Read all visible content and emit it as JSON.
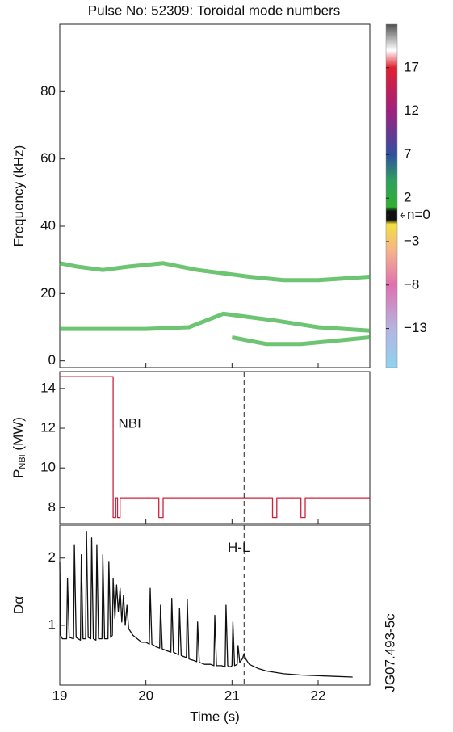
{
  "chart_data": [
    {
      "type": "spectrogram",
      "title": "Pulse No: 52309:   Toroidal mode numbers",
      "y_label": "Frequency (kHz)",
      "xlim": [
        19,
        22.6
      ],
      "xticks": [
        19,
        20,
        21,
        22
      ],
      "ylim": [
        -2,
        100
      ],
      "yticks": [
        0,
        20,
        40,
        60,
        80
      ],
      "series": [
        {
          "color": "#3cb043",
          "x": [
            19.0,
            19.2,
            19.5,
            19.8,
            20.2,
            20.6,
            20.9,
            21.2,
            21.6,
            22.0,
            22.6
          ],
          "values": [
            29,
            28,
            27,
            28,
            29,
            27,
            26,
            25,
            24,
            24,
            25
          ]
        },
        {
          "color": "#3cb043",
          "x": [
            19.0,
            19.5,
            20.0,
            20.5,
            20.7,
            20.9,
            21.2,
            21.5,
            22.0,
            22.6
          ],
          "values": [
            9.5,
            9.5,
            9.5,
            10,
            12,
            14,
            13,
            12,
            10,
            9
          ]
        },
        {
          "color": "#3cb043",
          "x": [
            21.0,
            21.4,
            21.8,
            22.2,
            22.6
          ],
          "values": [
            7,
            5,
            5,
            6,
            7
          ]
        }
      ],
      "colorbar": {
        "lim": [
          -17.5,
          22
        ],
        "ticks": [
          17,
          12,
          7,
          2,
          {
            "value": 0,
            "label": "n=0"
          },
          {
            "value": -3,
            "label": "−3"
          },
          {
            "value": -8,
            "label": "−8"
          },
          {
            "value": -13,
            "label": "−13"
          }
        ],
        "colorscale": [
          [
            -17.5,
            "#8fd3f0"
          ],
          [
            -13,
            "#b4b4e0"
          ],
          [
            -8,
            "#e070b0"
          ],
          [
            -4,
            "#f6b48a"
          ],
          [
            -1,
            "#f2e040"
          ],
          [
            -0.5,
            "#101010"
          ],
          [
            0.5,
            "#101010"
          ],
          [
            1,
            "#30b030"
          ],
          [
            4,
            "#2fa060"
          ],
          [
            7,
            "#3050a0"
          ],
          [
            12,
            "#a02080"
          ],
          [
            17,
            "#e02030"
          ],
          [
            19,
            "#ffffff"
          ],
          [
            22,
            "#505050"
          ]
        ]
      }
    },
    {
      "type": "line",
      "y_label": {
        "main": "P",
        "sub": "NBI",
        "unit": " (MW)"
      },
      "annotations": [
        {
          "text": "NBI",
          "x": 19.68,
          "y": 12.2
        }
      ],
      "vline": 21.14,
      "xlim": [
        19,
        22.6
      ],
      "xticks": [
        19,
        20,
        21,
        22
      ],
      "ylim": [
        7.2,
        14.85
      ],
      "yticks": [
        8,
        10,
        12,
        14
      ],
      "series": [
        {
          "color": "#d0203a",
          "x": [
            19,
            19.62,
            19.62,
            19.65,
            19.65,
            19.67,
            19.67,
            19.7,
            19.7,
            20.15,
            20.15,
            20.2,
            20.2,
            21.47,
            21.47,
            21.52,
            21.52,
            21.8,
            21.8,
            21.85,
            21.85,
            22.6
          ],
          "values": [
            14.6,
            14.6,
            7.5,
            7.5,
            8.5,
            8.5,
            7.5,
            7.5,
            8.5,
            8.5,
            7.5,
            7.5,
            8.5,
            8.5,
            7.5,
            7.5,
            8.5,
            8.5,
            7.5,
            7.5,
            8.5,
            8.5
          ]
        }
      ]
    },
    {
      "type": "line",
      "y_label": "Dα",
      "x_label": "Time (s)",
      "annotations": [
        {
          "text": "H-L",
          "x": 20.95,
          "y": 2.15
        }
      ],
      "figure_id": "JG07.493-5c",
      "vline": 21.14,
      "xlim": [
        19,
        22.6
      ],
      "xticks": [
        19,
        20,
        21,
        22
      ],
      "ylim": [
        0.11,
        2.49
      ],
      "yticks": [
        1,
        2
      ],
      "series": [
        {
          "color": "#111111",
          "x": [
            19.0,
            19.01,
            19.03,
            19.08,
            19.09,
            19.11,
            19.16,
            19.17,
            19.19,
            19.24,
            19.25,
            19.27,
            19.3,
            19.31,
            19.33,
            19.36,
            19.37,
            19.39,
            19.42,
            19.43,
            19.45,
            19.49,
            19.5,
            19.52,
            19.56,
            19.57,
            19.59,
            19.61,
            19.62,
            19.64,
            19.66,
            19.68,
            19.7,
            19.72,
            19.74,
            19.76,
            19.78,
            19.8,
            19.85,
            19.9,
            19.95,
            20.0,
            20.04,
            20.05,
            20.07,
            20.12,
            20.16,
            20.17,
            20.19,
            20.25,
            20.29,
            20.3,
            20.32,
            20.38,
            20.39,
            20.41,
            20.47,
            20.48,
            20.5,
            20.55,
            20.59,
            20.6,
            20.62,
            20.68,
            20.75,
            20.79,
            20.8,
            20.82,
            20.88,
            20.92,
            20.93,
            20.95,
            20.98,
            21.0,
            21.01,
            21.03,
            21.06,
            21.07,
            21.09,
            21.12,
            21.14,
            21.16,
            21.2,
            21.3,
            21.4,
            21.6,
            21.8,
            22.0,
            22.2,
            22.4
          ],
          "values": [
            1.95,
            0.85,
            0.8,
            0.8,
            1.7,
            0.82,
            0.8,
            2.2,
            0.82,
            0.78,
            2.05,
            0.8,
            0.8,
            2.4,
            0.82,
            0.8,
            2.3,
            0.8,
            0.78,
            2.2,
            0.8,
            0.8,
            2.05,
            0.8,
            0.8,
            1.95,
            0.82,
            0.85,
            1.7,
            1.1,
            1.6,
            1.2,
            1.55,
            1.05,
            1.45,
            1.0,
            1.3,
            0.95,
            0.85,
            0.8,
            0.75,
            0.75,
            0.72,
            1.55,
            0.72,
            0.68,
            0.66,
            1.3,
            0.65,
            0.62,
            0.6,
            1.4,
            0.6,
            0.56,
            1.25,
            0.55,
            0.52,
            1.38,
            0.5,
            0.48,
            0.46,
            1.05,
            0.45,
            0.42,
            0.42,
            0.4,
            1.15,
            0.4,
            0.4,
            0.38,
            1.3,
            0.4,
            0.38,
            0.4,
            1.05,
            0.4,
            0.42,
            0.7,
            0.45,
            0.5,
            0.58,
            0.5,
            0.42,
            0.36,
            0.32,
            0.28,
            0.26,
            0.25,
            0.24,
            0.23
          ]
        }
      ]
    }
  ]
}
